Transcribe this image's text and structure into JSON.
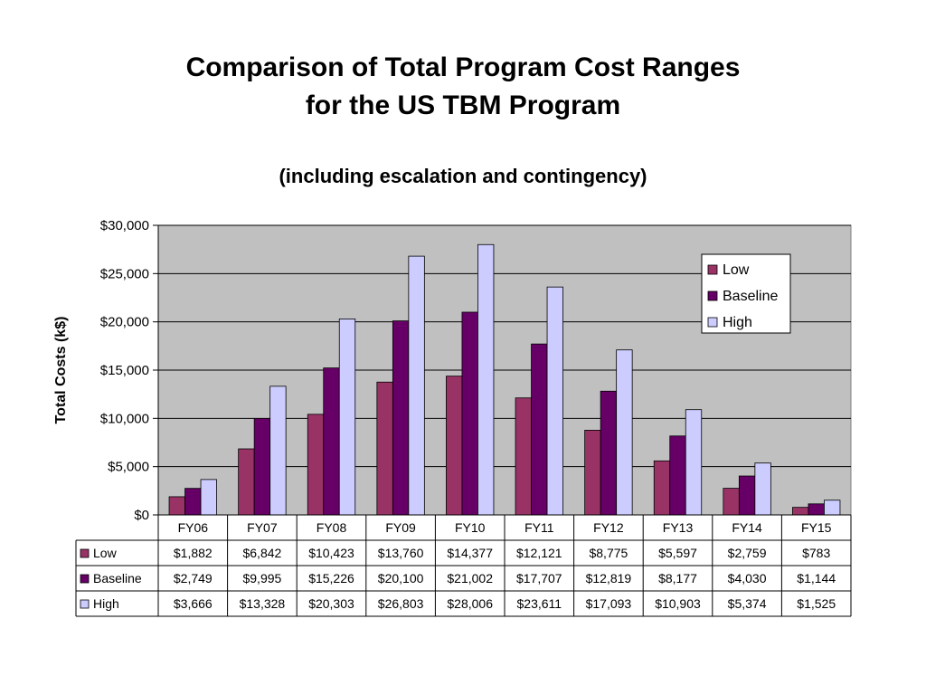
{
  "title_line1": "Comparison of Total Program Cost Ranges",
  "title_line2": "for the US TBM Program",
  "subtitle": "(including escalation and contingency)",
  "colors": {
    "Low": "#993366",
    "Baseline": "#660066",
    "High": "#ccccff",
    "plot_bg": "#c0c0c0"
  },
  "chart_data": {
    "type": "bar",
    "ylabel": "Total Costs (k$)",
    "ylim": [
      0,
      30000
    ],
    "yticks": [
      0,
      5000,
      10000,
      15000,
      20000,
      25000,
      30000
    ],
    "ytick_labels": [
      "$0",
      "$5,000",
      "$10,000",
      "$15,000",
      "$20,000",
      "$25,000",
      "$30,000"
    ],
    "grid": true,
    "legend_position": "top-right",
    "categories": [
      "FY06",
      "FY07",
      "FY08",
      "FY09",
      "FY10",
      "FY11",
      "FY12",
      "FY13",
      "FY14",
      "FY15"
    ],
    "series": [
      {
        "name": "Low",
        "values": [
          1882,
          6842,
          10423,
          13760,
          14377,
          12121,
          8775,
          5597,
          2759,
          783
        ],
        "labels": [
          "$1,882",
          "$6,842",
          "$10,423",
          "$13,760",
          "$14,377",
          "$12,121",
          "$8,775",
          "$5,597",
          "$2,759",
          "$783"
        ]
      },
      {
        "name": "Baseline",
        "values": [
          2749,
          9995,
          15226,
          20100,
          21002,
          17707,
          12819,
          8177,
          4030,
          1144
        ],
        "labels": [
          "$2,749",
          "$9,995",
          "$15,226",
          "$20,100",
          "$21,002",
          "$17,707",
          "$12,819",
          "$8,177",
          "$4,030",
          "$1,144"
        ]
      },
      {
        "name": "High",
        "values": [
          3666,
          13328,
          20303,
          26803,
          28006,
          23611,
          17093,
          10903,
          5374,
          1525
        ],
        "labels": [
          "$3,666",
          "$13,328",
          "$20,303",
          "$26,803",
          "$28,006",
          "$23,611",
          "$17,093",
          "$10,903",
          "$5,374",
          "$1,525"
        ]
      }
    ]
  }
}
